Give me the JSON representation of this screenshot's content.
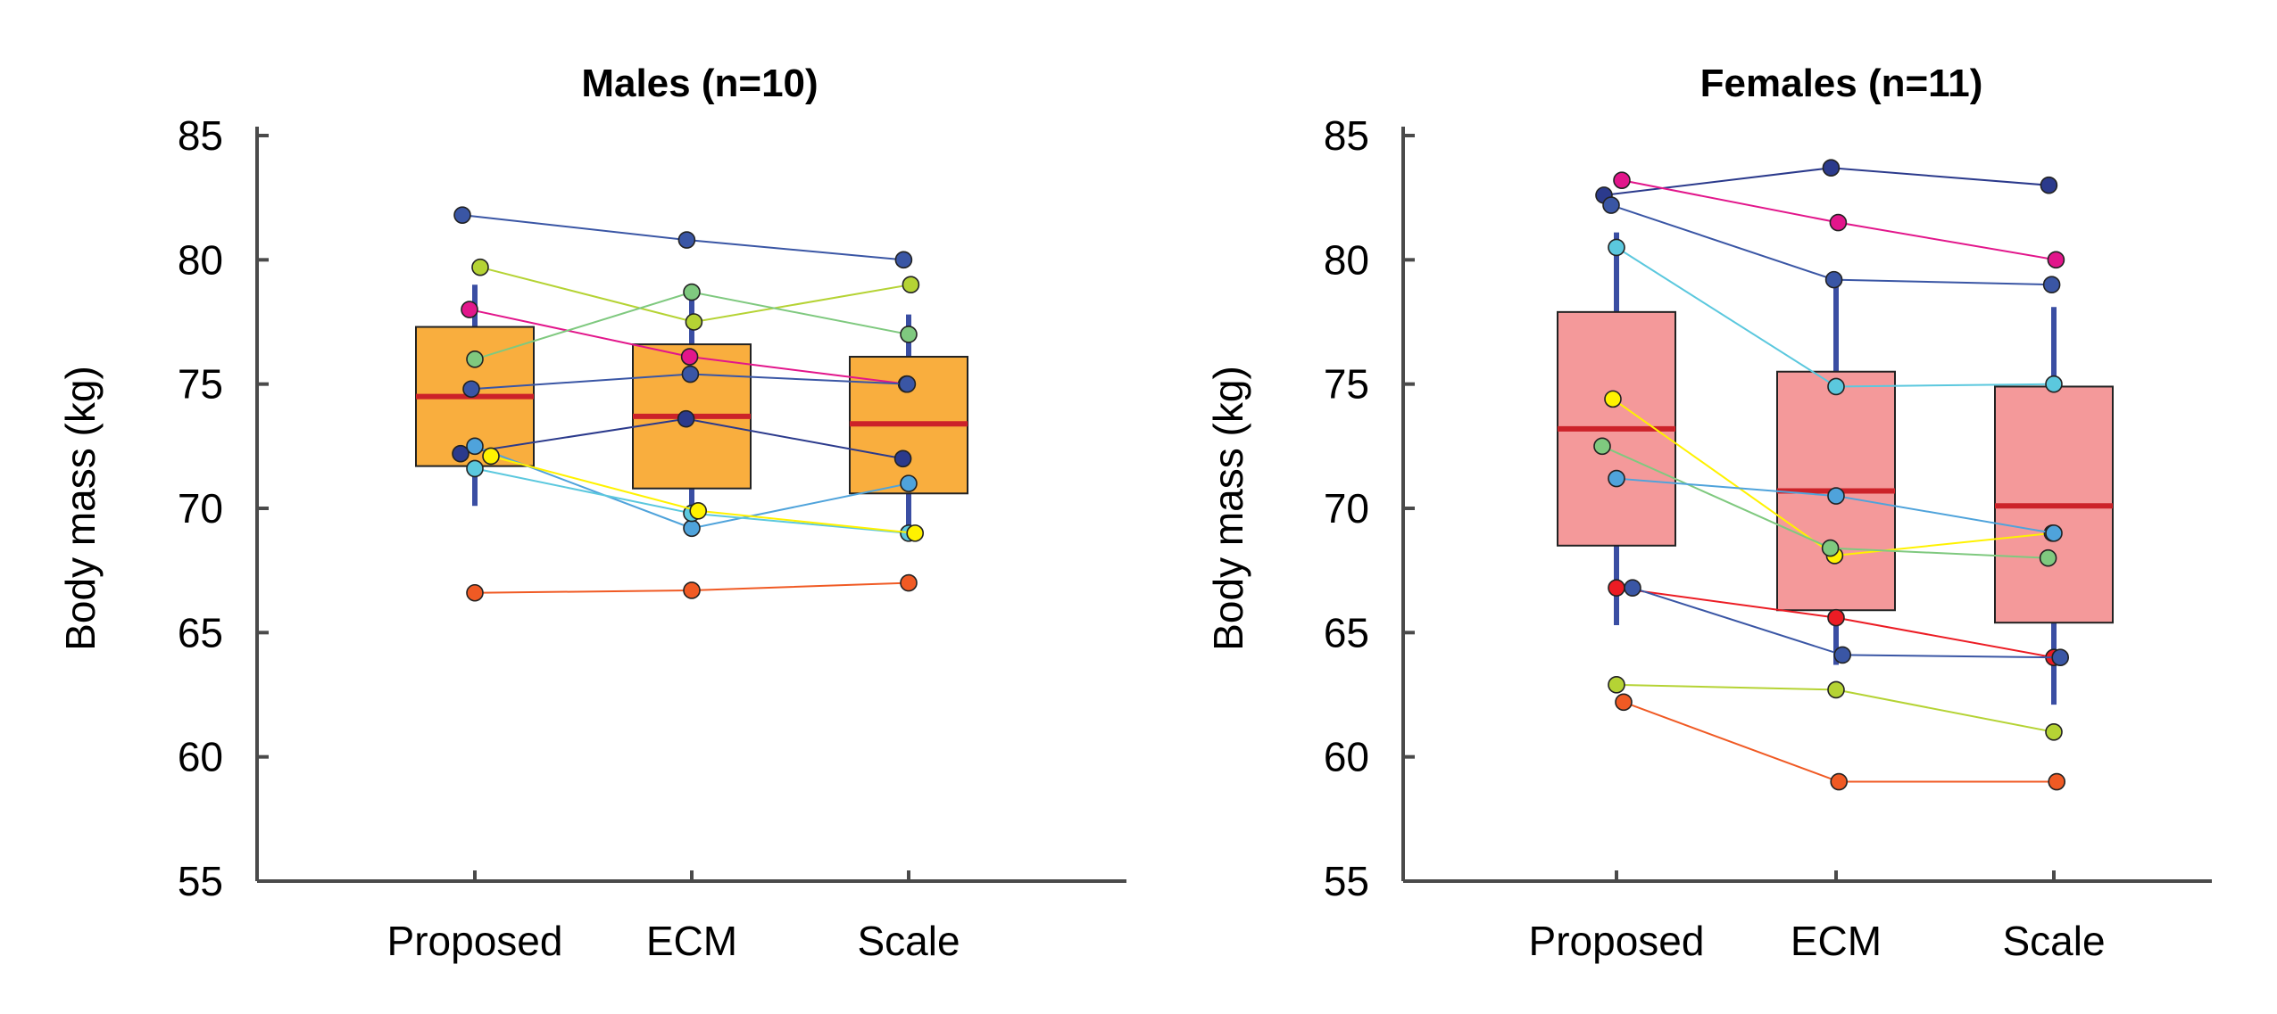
{
  "chart_data": [
    {
      "type": "box",
      "title": "Males (n=10)",
      "xlabel": "",
      "ylabel": "Body mass (kg)",
      "categories": [
        "Proposed",
        "ECM",
        "Scale"
      ],
      "ylim": [
        55,
        85
      ],
      "yticks": [
        55,
        60,
        65,
        70,
        75,
        80,
        85
      ],
      "grid": false,
      "box_color": "#F9AE3E",
      "box_stats": [
        {
          "whisker_low": 70.1,
          "q1": 71.7,
          "median": 74.5,
          "q3": 77.3,
          "whisker_high": 79.0
        },
        {
          "whisker_low": 69.0,
          "q1": 70.8,
          "median": 73.7,
          "q3": 76.6,
          "whisker_high": 78.6
        },
        {
          "whisker_low": 69.0,
          "q1": 70.6,
          "median": 73.4,
          "q3": 76.1,
          "whisker_high": 77.8
        }
      ],
      "subjects": [
        {
          "color": "#3A56A5",
          "values": [
            81.8,
            80.8,
            80.0
          ]
        },
        {
          "color": "#B5D334",
          "values": [
            79.7,
            77.5,
            79.0
          ]
        },
        {
          "color": "#E2168B",
          "values": [
            78.0,
            76.1,
            75.0
          ]
        },
        {
          "color": "#7FC97F",
          "values": [
            76.0,
            78.7,
            77.0
          ]
        },
        {
          "color": "#3A56A5",
          "values": [
            74.8,
            75.4,
            75.0
          ]
        },
        {
          "color": "#2B3A8C",
          "values": [
            72.2,
            73.6,
            72.0
          ]
        },
        {
          "color": "#4FA3DB",
          "values": [
            72.5,
            69.2,
            71.0
          ]
        },
        {
          "color": "#5BC8DE",
          "values": [
            71.6,
            69.8,
            69.0
          ]
        },
        {
          "color": "#FFF200",
          "values": [
            72.1,
            69.9,
            69.0
          ]
        },
        {
          "color": "#F05A24",
          "values": [
            66.6,
            66.7,
            67.0
          ]
        }
      ]
    },
    {
      "type": "box",
      "title": "Females (n=11)",
      "xlabel": "",
      "ylabel": "Body mass (kg)",
      "categories": [
        "Proposed",
        "ECM",
        "Scale"
      ],
      "ylim": [
        55,
        85
      ],
      "yticks": [
        55,
        60,
        65,
        70,
        75,
        80,
        85
      ],
      "grid": false,
      "box_color": "#F4999A",
      "box_stats": [
        {
          "whisker_low": 65.3,
          "q1": 68.5,
          "median": 73.2,
          "q3": 77.9,
          "whisker_high": 81.1
        },
        {
          "whisker_low": 63.7,
          "q1": 65.9,
          "median": 70.7,
          "q3": 75.5,
          "whisker_high": 79.0
        },
        {
          "whisker_low": 62.1,
          "q1": 65.4,
          "median": 70.1,
          "q3": 74.9,
          "whisker_high": 78.1
        }
      ],
      "subjects": [
        {
          "color": "#2B3A8C",
          "values": [
            82.6,
            83.7,
            83.0
          ]
        },
        {
          "color": "#E2168B",
          "values": [
            83.2,
            81.5,
            80.0
          ]
        },
        {
          "color": "#3A56A5",
          "values": [
            82.2,
            79.2,
            79.0
          ]
        },
        {
          "color": "#5BC8DE",
          "values": [
            80.5,
            74.9,
            75.0
          ]
        },
        {
          "color": "#FFF200",
          "values": [
            74.4,
            68.1,
            69.0
          ]
        },
        {
          "color": "#7FC97F",
          "values": [
            72.5,
            68.4,
            68.0
          ]
        },
        {
          "color": "#4FA3DB",
          "values": [
            71.2,
            70.5,
            69.0
          ]
        },
        {
          "color": "#EC1C24",
          "values": [
            66.8,
            65.6,
            64.0
          ]
        },
        {
          "color": "#3A56A5",
          "values": [
            66.8,
            64.1,
            64.0
          ]
        },
        {
          "color": "#B5D334",
          "values": [
            62.9,
            62.7,
            61.0
          ]
        },
        {
          "color": "#F05A24",
          "values": [
            62.2,
            59.0,
            59.0
          ]
        }
      ]
    }
  ]
}
